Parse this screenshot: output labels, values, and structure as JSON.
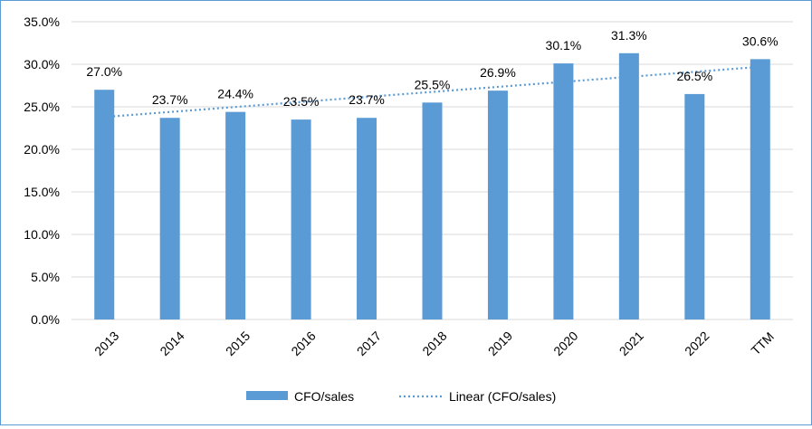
{
  "chart_data": {
    "type": "bar",
    "title": "",
    "xlabel": "",
    "ylabel": "",
    "categories": [
      "2013",
      "2014",
      "2015",
      "2016",
      "2017",
      "2018",
      "2019",
      "2020",
      "2021",
      "2022",
      "TTM"
    ],
    "series": [
      {
        "name": "CFO/sales",
        "values": [
          27.0,
          23.7,
          24.4,
          23.5,
          23.7,
          25.5,
          26.9,
          30.1,
          31.3,
          26.5,
          30.6
        ],
        "data_labels": [
          "27.0%",
          "23.7%",
          "24.4%",
          "23.5%",
          "23.7%",
          "25.5%",
          "26.9%",
          "30.1%",
          "31.3%",
          "26.5%",
          "30.6%"
        ],
        "color": "#5b9bd5"
      }
    ],
    "trendline": {
      "name": "Linear (CFO/sales)",
      "type": "linear",
      "style": "dotted",
      "color": "#5b9bd5",
      "start_value": 23.8,
      "end_value": 29.7
    },
    "ylim": [
      0,
      35
    ],
    "yticks": [
      0,
      5,
      10,
      15,
      20,
      25,
      30,
      35
    ],
    "ytick_labels": [
      "0.0%",
      "5.0%",
      "10.0%",
      "15.0%",
      "20.0%",
      "25.0%",
      "30.0%",
      "35.0%"
    ],
    "grid": true,
    "legend_position": "bottom",
    "legend": [
      {
        "label": "CFO/sales",
        "kind": "bar"
      },
      {
        "label": "Linear (CFO/sales)",
        "kind": "dotted-line"
      }
    ]
  }
}
